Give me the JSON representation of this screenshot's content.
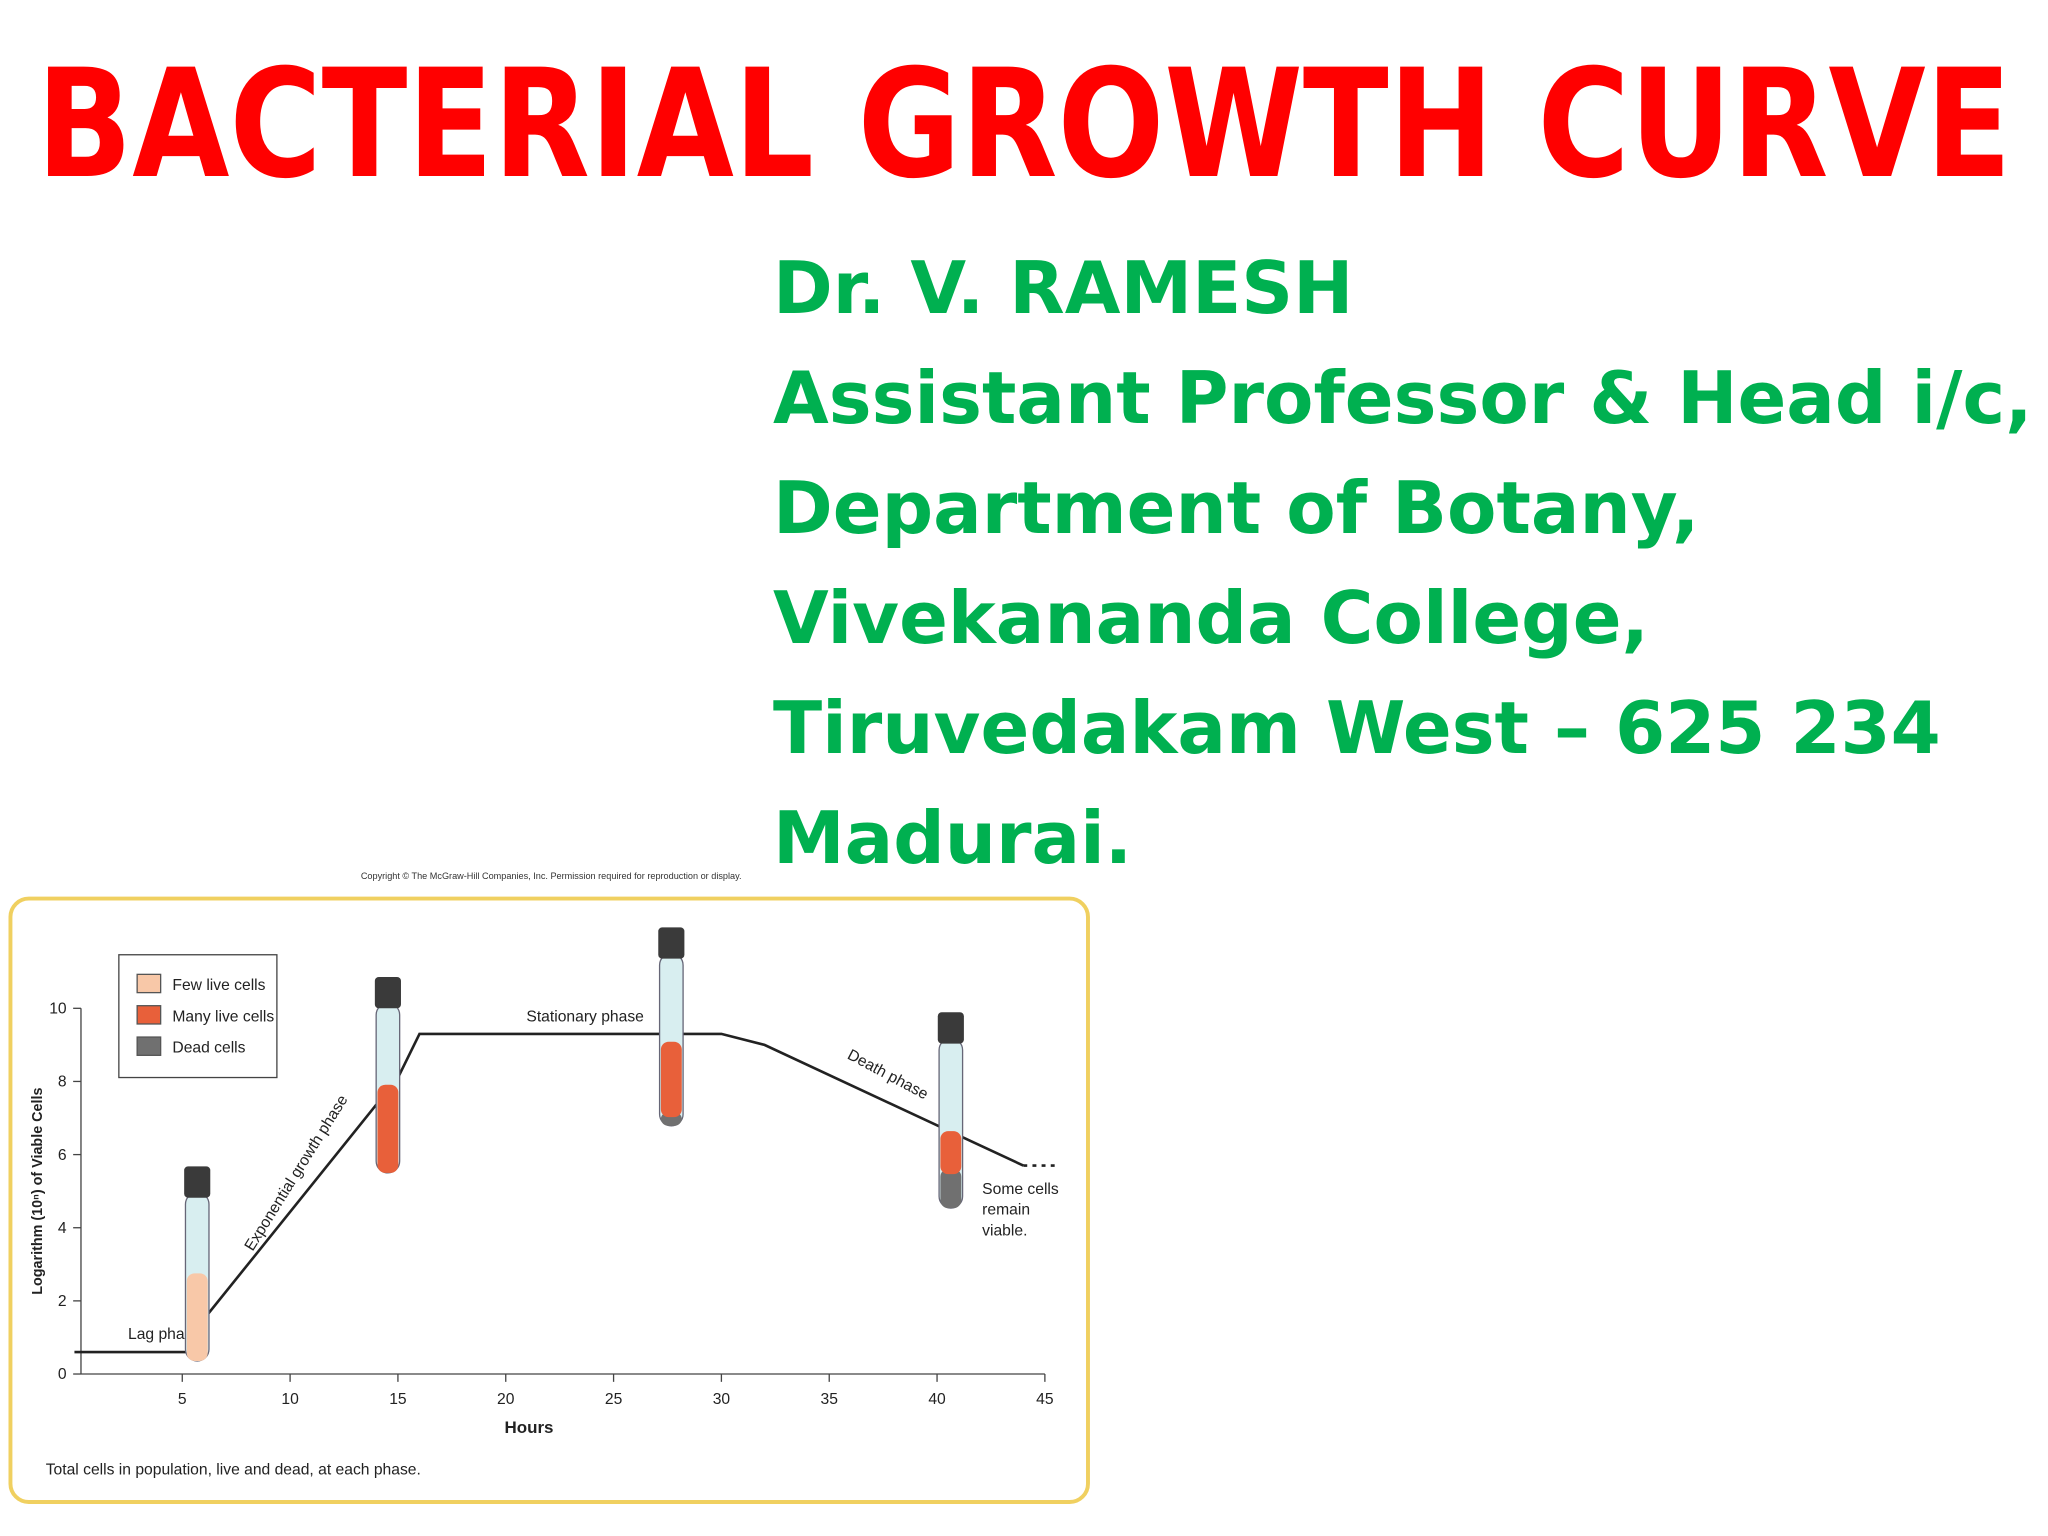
{
  "title": "BACTERIAL GROWTH CURVE",
  "author_lines": [
    "Dr. V. RAMESH",
    "Assistant Professor & Head i/c,",
    "Department of Botany,",
    "Vivekananda College,",
    "Tiruvedakam West – 625 234",
    "Madurai."
  ],
  "chart_data": {
    "type": "line",
    "copyright": "Copyright © The McGraw-Hill Companies, Inc. Permission required for reproduction or display.",
    "x_label": "Hours",
    "y_label": "Logarithm (10ⁿ) of Viable Cells",
    "caption": "Total cells in population, live and dead, at each phase.",
    "x": [
      0,
      5.5,
      6,
      15,
      16,
      30,
      32,
      44
    ],
    "series": [
      {
        "color": "#222222",
        "values": [
          0.6,
          0.6,
          1.5,
          8.1,
          9.3,
          9.3,
          9.0,
          5.7
        ]
      }
    ],
    "tail": {
      "x": [
        44,
        45.5
      ],
      "values": [
        5.7,
        5.7
      ]
    },
    "legend": [
      {
        "name": "Few live cells",
        "color": "#f8c8a8"
      },
      {
        "name": "Many live cells",
        "color": "#e8603a"
      },
      {
        "name": "Dead cells",
        "color": "#707070"
      }
    ],
    "annotations": {
      "lag": "Lag phase",
      "exponential": "Exponential growth phase",
      "stationary": "Stationary phase",
      "death": "Death phase",
      "remain": [
        "Some cells",
        "remain",
        "viable."
      ]
    },
    "xlim": [
      0,
      45
    ],
    "xticks": [
      5,
      10,
      15,
      20,
      25,
      30,
      35,
      40,
      45
    ],
    "ylim": [
      0,
      10
    ],
    "yticks": [
      0,
      2,
      4,
      6,
      8,
      10
    ]
  }
}
